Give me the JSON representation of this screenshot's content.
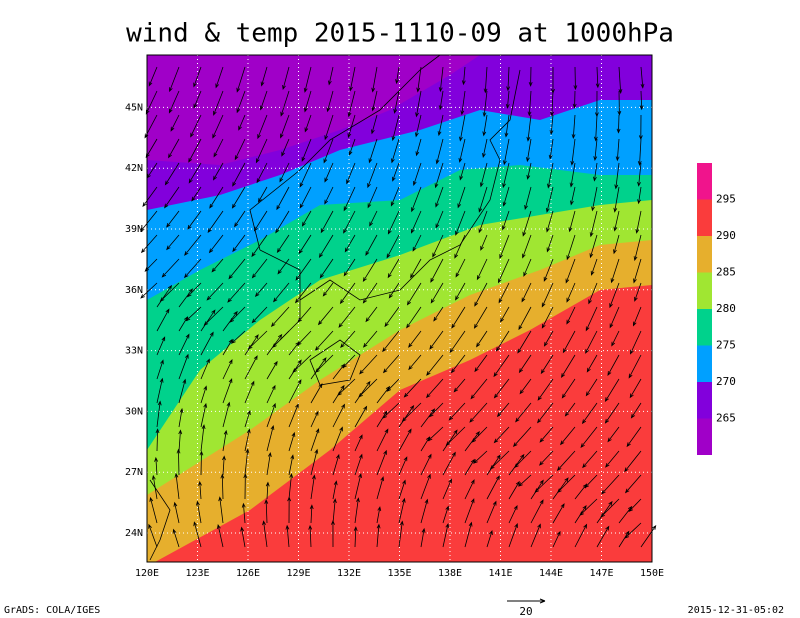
{
  "title": "wind & temp 2015-1110-09 at 1000hPa",
  "map": {
    "lon_labels": [
      "120E",
      "123E",
      "126E",
      "129E",
      "132E",
      "135E",
      "138E",
      "141E",
      "144E",
      "147E",
      "150E"
    ],
    "lat_labels": [
      "24N",
      "27N",
      "30N",
      "33N",
      "36N",
      "39N",
      "42N",
      "45N"
    ]
  },
  "colorbar": {
    "labels": [
      "265",
      "270",
      "275",
      "280",
      "285",
      "290",
      "295"
    ],
    "colors": [
      "#a000c8",
      "#8200dc",
      "#00a0ff",
      "#00d28c",
      "#a0e632",
      "#e6af2d",
      "#fa3c3c",
      "#f0148c"
    ]
  },
  "footer": {
    "left": "GrADS: COLA/IGES",
    "vector_ref": "20",
    "right": "2015-12-31-05:02"
  }
}
